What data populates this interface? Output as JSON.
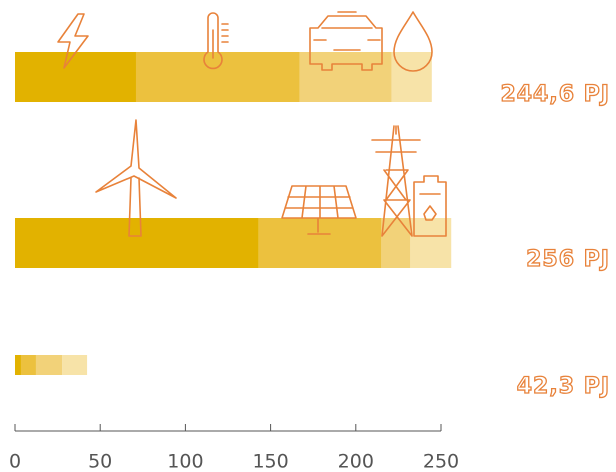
{
  "chart_data": {
    "type": "stacked-hbar",
    "colors": [
      "#e2b200",
      "#ecc13e",
      "#f2d279",
      "#f7e3a8"
    ],
    "bars": [
      {
        "values": [
          71,
          96,
          54,
          23.6
        ],
        "total": 244.6,
        "total_label": "244,6 PJ"
      },
      {
        "values": [
          143,
          72,
          17,
          24
        ],
        "total": 256,
        "total_label": "256 PJ"
      },
      {
        "values": [
          3.5,
          8.8,
          15.3,
          14.7
        ],
        "total": 42.3,
        "total_label": "42,3 PJ"
      }
    ],
    "xlim": [
      0,
      250
    ],
    "xticks": [
      0,
      50,
      100,
      150,
      200,
      250
    ]
  }
}
